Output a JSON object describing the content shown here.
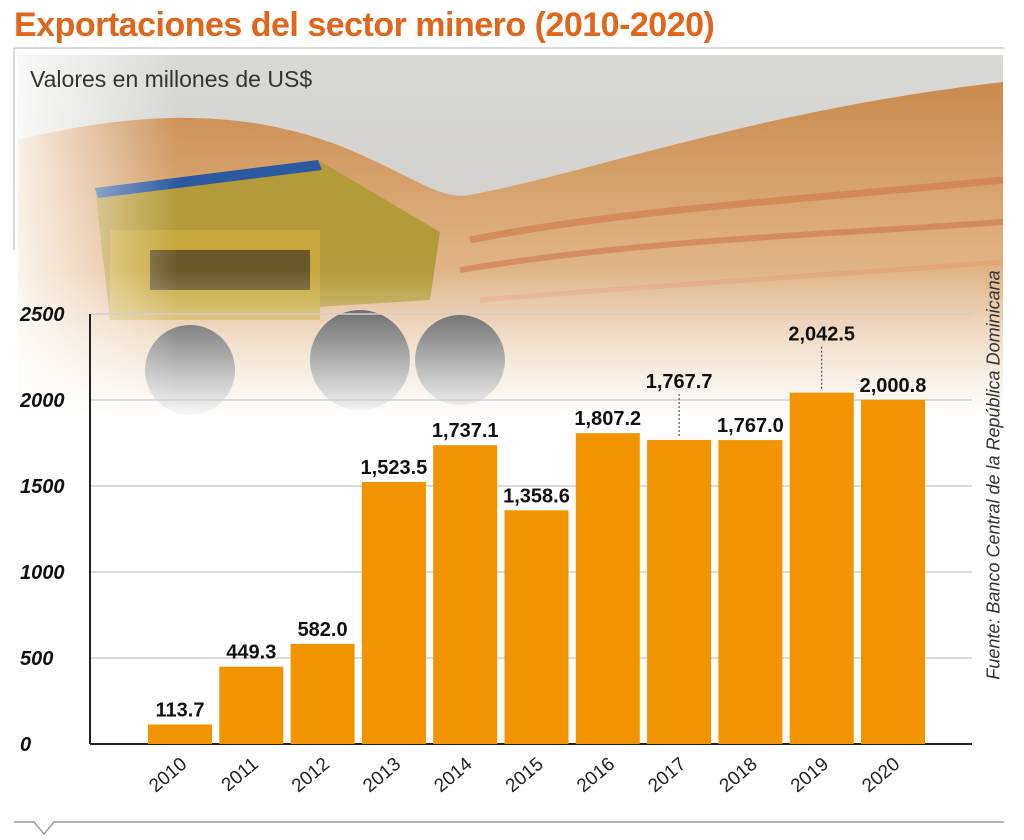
{
  "header": {
    "title": "Exportaciones del sector minero (2010-2020)",
    "subtitle": "Valores en millones de US$"
  },
  "source": "Fuente: Banco Central de la República Dominicana",
  "colors": {
    "accent": "#e0661b",
    "bar": "#f29400",
    "grid": "#cfcfcf",
    "axis": "#222222"
  },
  "chart_data": {
    "type": "bar",
    "title": "Exportaciones del sector minero (2010-2020)",
    "subtitle": "Valores en millones de US$",
    "xlabel": "",
    "ylabel": "",
    "ylim": [
      0,
      2500
    ],
    "yticks": [
      0,
      500,
      1000,
      1500,
      2000,
      2500
    ],
    "grid": true,
    "categories": [
      "2010",
      "2011",
      "2012",
      "2013",
      "2014",
      "2015",
      "2016",
      "2017",
      "2018",
      "2019",
      "2020"
    ],
    "values": [
      113.7,
      449.3,
      582.0,
      1523.5,
      1737.1,
      1358.6,
      1807.2,
      1767.7,
      1767.0,
      2042.5,
      2000.8
    ],
    "value_labels": [
      "113.7",
      "449.3",
      "582.0",
      "1,523.5",
      "1,737.1",
      "1,358.6",
      "1,807.2",
      "1,767.7",
      "1,767.0",
      "2,042.5",
      "2,000.8"
    ]
  }
}
